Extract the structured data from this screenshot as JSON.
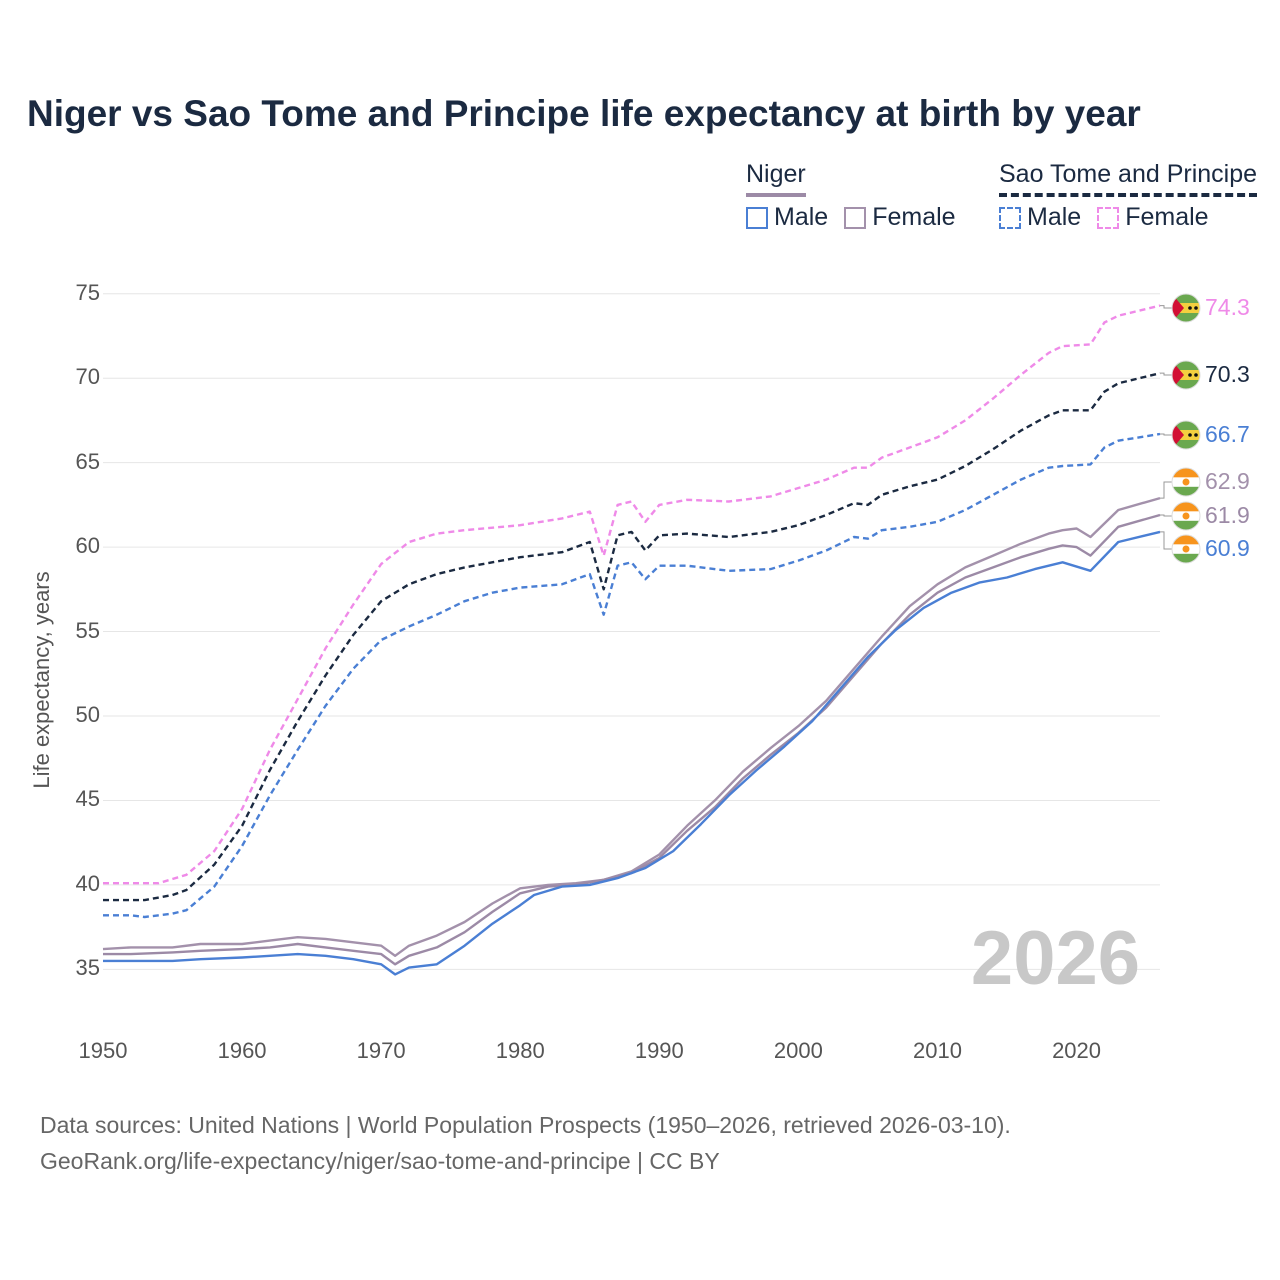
{
  "title": "Niger vs Sao Tome and Principe life expectancy at birth by year",
  "legend": {
    "niger": {
      "label": "Niger",
      "male": "Male",
      "female": "Female"
    },
    "stp": {
      "label": "Sao Tome and Principe",
      "male": "Male",
      "female": "Female"
    }
  },
  "watermark_year": "2026",
  "source_line1": "Data sources: United Nations | World Population Prospects (1950–2026, retrieved 2026-03-10).",
  "source_line2": "GeoRank.org/life-expectancy/niger/sao-tome-and-principe | CC BY",
  "colors": {
    "niger_male": "#4a7fd4",
    "niger_female": "#a391ab",
    "stp_male": "#4a7fd4",
    "stp_female": "#ef8ae8",
    "stp_overall": "#1b2a41",
    "niger_overall": "#9c8aa6"
  },
  "chart_data": {
    "type": "line",
    "title": "Niger vs Sao Tome and Principe life expectancy at birth by year",
    "xlabel": "",
    "ylabel": "Life expectancy, years",
    "xlim": [
      1950,
      2026
    ],
    "ylim": [
      32,
      77
    ],
    "yticks": [
      35,
      40,
      45,
      50,
      55,
      60,
      65,
      70,
      75
    ],
    "xticks": [
      1950,
      1960,
      1970,
      1980,
      1990,
      2000,
      2010,
      2020
    ],
    "series": [
      {
        "name": "Sao Tome and Principe Female",
        "country": "Sao Tome and Principe",
        "style": "dashed",
        "color_key": "stp_female",
        "end_value": "74.3",
        "points": [
          [
            1950,
            40.1
          ],
          [
            1953,
            40.1
          ],
          [
            1954,
            40.1
          ],
          [
            1956,
            40.6
          ],
          [
            1958,
            42
          ],
          [
            1960,
            44.5
          ],
          [
            1962,
            48
          ],
          [
            1964,
            51
          ],
          [
            1966,
            54
          ],
          [
            1968,
            56.6
          ],
          [
            1970,
            59
          ],
          [
            1972,
            60.3
          ],
          [
            1974,
            60.8
          ],
          [
            1976,
            61.0
          ],
          [
            1980,
            61.3
          ],
          [
            1983,
            61.7
          ],
          [
            1985,
            62.1
          ],
          [
            1986,
            59.5
          ],
          [
            1987,
            62.5
          ],
          [
            1988,
            62.7
          ],
          [
            1989,
            61.5
          ],
          [
            1990,
            62.5
          ],
          [
            1992,
            62.8
          ],
          [
            1995,
            62.7
          ],
          [
            1998,
            63.0
          ],
          [
            2000,
            63.5
          ],
          [
            2002,
            64.0
          ],
          [
            2004,
            64.7
          ],
          [
            2005,
            64.7
          ],
          [
            2006,
            65.3
          ],
          [
            2008,
            65.9
          ],
          [
            2010,
            66.5
          ],
          [
            2012,
            67.5
          ],
          [
            2014,
            68.8
          ],
          [
            2016,
            70.2
          ],
          [
            2018,
            71.5
          ],
          [
            2019,
            71.9
          ],
          [
            2021,
            72.0
          ],
          [
            2022,
            73.3
          ],
          [
            2023,
            73.7
          ],
          [
            2026,
            74.3
          ]
        ]
      },
      {
        "name": "Sao Tome and Principe (total)",
        "country": "Sao Tome and Principe",
        "style": "dashed",
        "color_key": "stp_overall",
        "end_value": "70.3",
        "points": [
          [
            1950,
            39.1
          ],
          [
            1953,
            39.1
          ],
          [
            1955,
            39.4
          ],
          [
            1956,
            39.7
          ],
          [
            1958,
            41.2
          ],
          [
            1960,
            43.5
          ],
          [
            1962,
            46.8
          ],
          [
            1964,
            49.7
          ],
          [
            1966,
            52.4
          ],
          [
            1968,
            54.8
          ],
          [
            1970,
            56.8
          ],
          [
            1972,
            57.8
          ],
          [
            1974,
            58.4
          ],
          [
            1976,
            58.8
          ],
          [
            1980,
            59.4
          ],
          [
            1983,
            59.7
          ],
          [
            1985,
            60.3
          ],
          [
            1986,
            57.5
          ],
          [
            1987,
            60.7
          ],
          [
            1988,
            60.9
          ],
          [
            1989,
            59.8
          ],
          [
            1990,
            60.7
          ],
          [
            1992,
            60.8
          ],
          [
            1995,
            60.6
          ],
          [
            1998,
            60.9
          ],
          [
            2000,
            61.3
          ],
          [
            2002,
            61.9
          ],
          [
            2004,
            62.6
          ],
          [
            2005,
            62.5
          ],
          [
            2006,
            63.1
          ],
          [
            2008,
            63.6
          ],
          [
            2010,
            64.0
          ],
          [
            2012,
            64.8
          ],
          [
            2014,
            65.8
          ],
          [
            2016,
            66.9
          ],
          [
            2018,
            67.8
          ],
          [
            2019,
            68.1
          ],
          [
            2021,
            68.1
          ],
          [
            2022,
            69.2
          ],
          [
            2023,
            69.7
          ],
          [
            2026,
            70.3
          ]
        ]
      },
      {
        "name": "Sao Tome and Principe Male",
        "country": "Sao Tome and Principe",
        "style": "dashed",
        "color_key": "stp_male",
        "end_value": "66.7",
        "points": [
          [
            1950,
            38.2
          ],
          [
            1952,
            38.2
          ],
          [
            1953,
            38.1
          ],
          [
            1955,
            38.3
          ],
          [
            1956,
            38.5
          ],
          [
            1958,
            39.9
          ],
          [
            1960,
            42.3
          ],
          [
            1962,
            45.3
          ],
          [
            1964,
            48.0
          ],
          [
            1966,
            50.6
          ],
          [
            1968,
            52.8
          ],
          [
            1970,
            54.5
          ],
          [
            1972,
            55.3
          ],
          [
            1974,
            56.0
          ],
          [
            1976,
            56.8
          ],
          [
            1978,
            57.3
          ],
          [
            1980,
            57.6
          ],
          [
            1983,
            57.8
          ],
          [
            1985,
            58.4
          ],
          [
            1986,
            56.0
          ],
          [
            1987,
            58.9
          ],
          [
            1988,
            59.1
          ],
          [
            1989,
            58.1
          ],
          [
            1990,
            58.9
          ],
          [
            1992,
            58.9
          ],
          [
            1995,
            58.6
          ],
          [
            1998,
            58.7
          ],
          [
            2000,
            59.2
          ],
          [
            2002,
            59.8
          ],
          [
            2004,
            60.6
          ],
          [
            2005,
            60.5
          ],
          [
            2006,
            61.0
          ],
          [
            2008,
            61.2
          ],
          [
            2010,
            61.5
          ],
          [
            2012,
            62.2
          ],
          [
            2014,
            63.1
          ],
          [
            2016,
            64.0
          ],
          [
            2018,
            64.7
          ],
          [
            2019,
            64.8
          ],
          [
            2021,
            64.9
          ],
          [
            2022,
            65.9
          ],
          [
            2023,
            66.3
          ],
          [
            2026,
            66.7
          ]
        ]
      },
      {
        "name": "Niger Female",
        "country": "Niger",
        "style": "solid",
        "color_key": "niger_female",
        "end_value": "62.9",
        "points": [
          [
            1950,
            36.2
          ],
          [
            1952,
            36.3
          ],
          [
            1955,
            36.3
          ],
          [
            1957,
            36.5
          ],
          [
            1960,
            36.5
          ],
          [
            1962,
            36.7
          ],
          [
            1964,
            36.9
          ],
          [
            1966,
            36.8
          ],
          [
            1968,
            36.6
          ],
          [
            1970,
            36.4
          ],
          [
            1971,
            35.8
          ],
          [
            1972,
            36.4
          ],
          [
            1974,
            37.0
          ],
          [
            1976,
            37.8
          ],
          [
            1978,
            38.9
          ],
          [
            1980,
            39.8
          ],
          [
            1982,
            40.0
          ],
          [
            1984,
            40.1
          ],
          [
            1986,
            40.3
          ],
          [
            1988,
            40.8
          ],
          [
            1990,
            41.8
          ],
          [
            1992,
            43.5
          ],
          [
            1994,
            45.0
          ],
          [
            1996,
            46.7
          ],
          [
            1998,
            48.1
          ],
          [
            2000,
            49.4
          ],
          [
            2002,
            50.9
          ],
          [
            2004,
            52.8
          ],
          [
            2006,
            54.7
          ],
          [
            2008,
            56.5
          ],
          [
            2010,
            57.8
          ],
          [
            2012,
            58.8
          ],
          [
            2014,
            59.5
          ],
          [
            2016,
            60.2
          ],
          [
            2018,
            60.8
          ],
          [
            2019,
            61.0
          ],
          [
            2020,
            61.1
          ],
          [
            2021,
            60.6
          ],
          [
            2023,
            62.2
          ],
          [
            2026,
            62.9
          ]
        ]
      },
      {
        "name": "Niger (total)",
        "country": "Niger",
        "style": "solid",
        "color_key": "niger_overall",
        "end_value": "61.9",
        "points": [
          [
            1950,
            35.9
          ],
          [
            1952,
            35.9
          ],
          [
            1955,
            36.0
          ],
          [
            1957,
            36.1
          ],
          [
            1960,
            36.2
          ],
          [
            1962,
            36.3
          ],
          [
            1964,
            36.5
          ],
          [
            1966,
            36.3
          ],
          [
            1968,
            36.1
          ],
          [
            1970,
            35.9
          ],
          [
            1971,
            35.3
          ],
          [
            1972,
            35.8
          ],
          [
            1974,
            36.3
          ],
          [
            1976,
            37.2
          ],
          [
            1978,
            38.4
          ],
          [
            1980,
            39.5
          ],
          [
            1982,
            39.9
          ],
          [
            1984,
            40.0
          ],
          [
            1986,
            40.3
          ],
          [
            1988,
            40.7
          ],
          [
            1990,
            41.6
          ],
          [
            1992,
            43.2
          ],
          [
            1994,
            44.6
          ],
          [
            1996,
            46.3
          ],
          [
            1998,
            47.7
          ],
          [
            2000,
            49.0
          ],
          [
            2002,
            50.5
          ],
          [
            2004,
            52.4
          ],
          [
            2006,
            54.3
          ],
          [
            2008,
            56.0
          ],
          [
            2010,
            57.3
          ],
          [
            2012,
            58.2
          ],
          [
            2014,
            58.8
          ],
          [
            2016,
            59.4
          ],
          [
            2018,
            59.9
          ],
          [
            2019,
            60.1
          ],
          [
            2020,
            60.0
          ],
          [
            2021,
            59.5
          ],
          [
            2023,
            61.2
          ],
          [
            2026,
            61.9
          ]
        ]
      },
      {
        "name": "Niger Male",
        "country": "Niger",
        "style": "solid",
        "color_key": "niger_male",
        "end_value": "60.9",
        "points": [
          [
            1950,
            35.5
          ],
          [
            1952,
            35.5
          ],
          [
            1955,
            35.5
          ],
          [
            1957,
            35.6
          ],
          [
            1960,
            35.7
          ],
          [
            1962,
            35.8
          ],
          [
            1964,
            35.9
          ],
          [
            1966,
            35.8
          ],
          [
            1968,
            35.6
          ],
          [
            1970,
            35.3
          ],
          [
            1971,
            34.7
          ],
          [
            1972,
            35.1
          ],
          [
            1974,
            35.3
          ],
          [
            1976,
            36.4
          ],
          [
            1978,
            37.7
          ],
          [
            1980,
            38.8
          ],
          [
            1981,
            39.4
          ],
          [
            1983,
            39.9
          ],
          [
            1985,
            40.0
          ],
          [
            1987,
            40.4
          ],
          [
            1989,
            41.0
          ],
          [
            1991,
            42.0
          ],
          [
            1993,
            43.6
          ],
          [
            1995,
            45.3
          ],
          [
            1997,
            46.8
          ],
          [
            1999,
            48.2
          ],
          [
            2001,
            49.7
          ],
          [
            2003,
            51.6
          ],
          [
            2005,
            53.5
          ],
          [
            2007,
            55.1
          ],
          [
            2009,
            56.4
          ],
          [
            2011,
            57.3
          ],
          [
            2013,
            57.9
          ],
          [
            2015,
            58.2
          ],
          [
            2017,
            58.7
          ],
          [
            2019,
            59.1
          ],
          [
            2021,
            58.6
          ],
          [
            2023,
            60.3
          ],
          [
            2026,
            60.9
          ]
        ]
      }
    ]
  }
}
